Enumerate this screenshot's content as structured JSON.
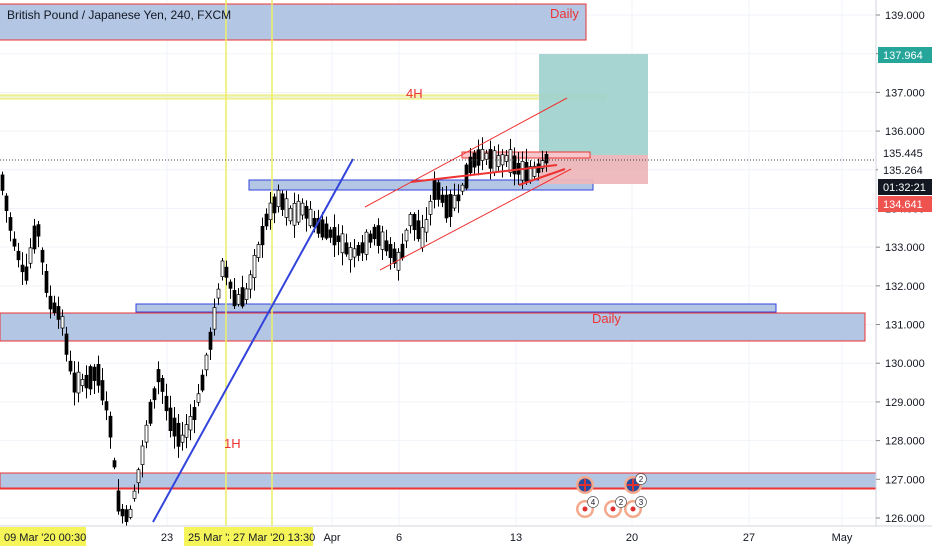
{
  "chart_data": {
    "type": "candlestick",
    "title": "British Pound / Japanese Yen, 240, FXCM",
    "ylim": [
      126.0,
      139.5
    ],
    "y_ticks": [
      "139.000",
      "138.000",
      "137.000",
      "136.000",
      "135.000",
      "134.000",
      "133.000",
      "132.000",
      "131.000",
      "130.000",
      "129.000",
      "128.000",
      "127.000",
      "126.000"
    ],
    "x_ticks": [
      "23",
      "Apr",
      "6",
      "13",
      "20",
      "27",
      "May"
    ],
    "x_highlight_labels": [
      "09 Mar '20  00:30",
      "25 Mar '20",
      "27 Mar '20  13:30"
    ],
    "price_labels": {
      "target": "137.964",
      "current": "135.445",
      "entry": "135.264",
      "countdown": "01:32:21",
      "stop": "134.641"
    },
    "zone_labels": {
      "daily_top": "Daily",
      "four_hour": "4H",
      "daily_mid": "Daily",
      "one_hour": "1H"
    },
    "event_badges": [
      "4",
      "2",
      "2",
      "3"
    ],
    "colors": {
      "bull": "#ffffff",
      "bear": "#000000",
      "zone_fill": "#b3c6e3",
      "red_line": "#ee3333",
      "blue_line": "#3344dd",
      "yellow_line": "#eeee66",
      "target_fill": "#9dd0cc",
      "stop_fill": "#efb7bb",
      "tag_target": "#26a69a",
      "tag_stop": "#ef5350",
      "tag_dark": "#131722"
    }
  }
}
